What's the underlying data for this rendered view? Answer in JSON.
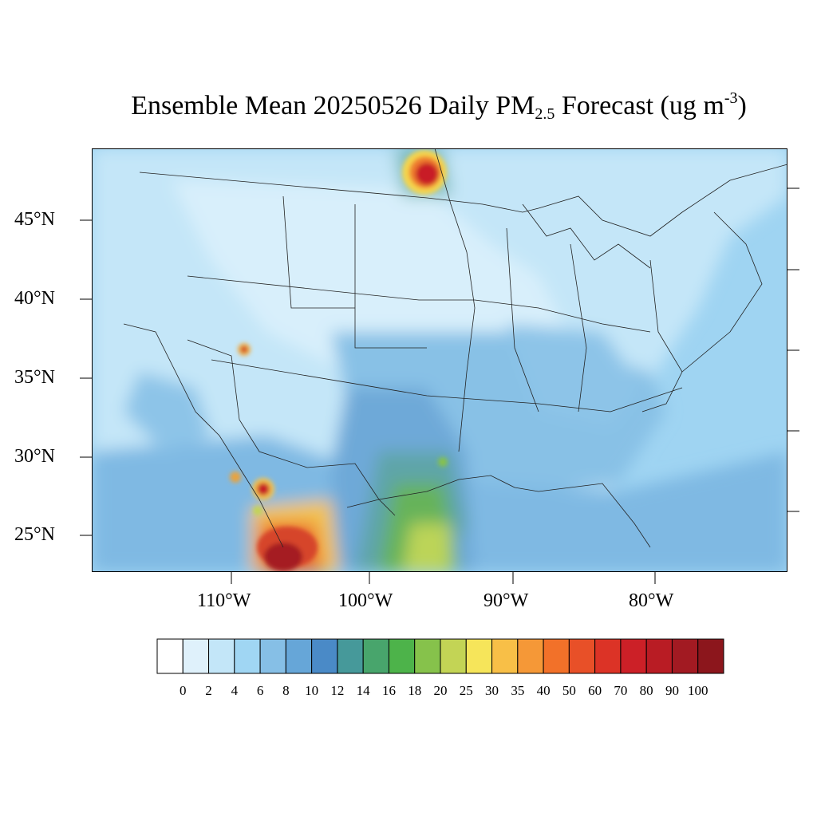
{
  "title": {
    "main": "Ensemble Mean 20250526 Daily PM",
    "sub": "2.5",
    "rest": " Forecast (ug m",
    "sup": "-3",
    "close": ")"
  },
  "lat_labels": [
    "45°N",
    "40°N",
    "35°N",
    "30°N",
    "25°N"
  ],
  "lon_labels": [
    "110°W",
    "100°W",
    "90°W",
    "80°W"
  ],
  "colorbar": {
    "levels": [
      "0",
      "2",
      "4",
      "6",
      "8",
      "10",
      "12",
      "14",
      "16",
      "18",
      "20",
      "25",
      "30",
      "35",
      "40",
      "50",
      "60",
      "70",
      "80",
      "90",
      "100"
    ],
    "colors": [
      "#ffffff",
      "#dff1fb",
      "#c3e6f8",
      "#a0d6f3",
      "#86bfe6",
      "#66a6d8",
      "#4a8ac7",
      "#46999a",
      "#48a56c",
      "#4db34a",
      "#86c24b",
      "#c3d455",
      "#f6e55a",
      "#f8bf47",
      "#f59837",
      "#f27129",
      "#e85028",
      "#dc3326",
      "#cc2027",
      "#b91c24",
      "#a21a22",
      "#8c161c"
    ]
  }
}
